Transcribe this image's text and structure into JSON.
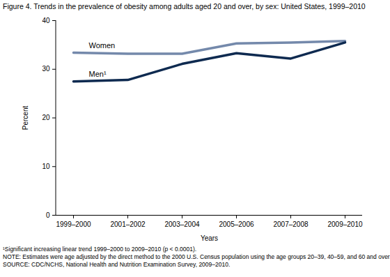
{
  "chart_data": {
    "type": "line",
    "title": "Figure 4. Trends in the prevalence of obesity among adults aged 20 and over, by sex: United States, 1999–2010",
    "x_label": "Years",
    "y_label": "Percent",
    "categories": [
      "1999–2000",
      "2001–2002",
      "2003–2004",
      "2005–2006",
      "2007–2008",
      "2009–2010"
    ],
    "series": [
      {
        "name": "Women",
        "color": "#7489ab",
        "values": [
          33.4,
          33.2,
          33.2,
          35.3,
          35.5,
          35.8
        ]
      },
      {
        "name": "Men¹",
        "color": "#0e2a50",
        "values": [
          27.5,
          27.8,
          31.1,
          33.3,
          32.2,
          35.5
        ]
      }
    ],
    "ylim": [
      0,
      40
    ],
    "yticks": [
      0,
      10,
      20,
      30,
      40
    ],
    "grid": false,
    "notes": [
      "¹Significant increasing linear trend 1999–2000 to 2009–2010 (p < 0.0001).",
      "NOTE: Estimates were age adjusted by the direct method to the 2000 U.S. Census population using the age groups 20–39, 40–59, and 60 and over.",
      "SOURCE: CDC/NCHS, National Health and Nutrition Examination Survey, 2009–2010."
    ]
  }
}
